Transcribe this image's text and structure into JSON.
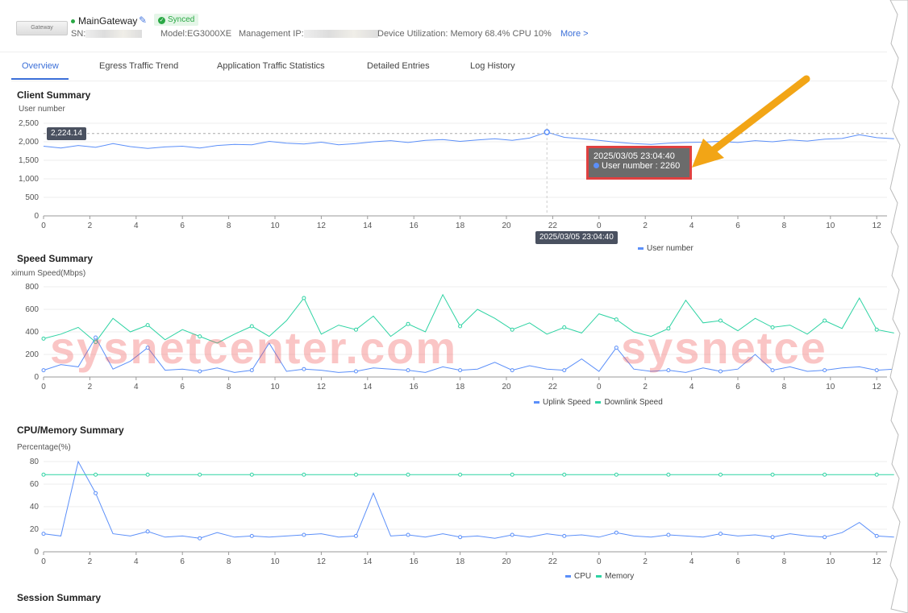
{
  "header": {
    "device_image_label": "Gateway",
    "name": "MainGateway",
    "status": "Synced",
    "sn_label": "SN:",
    "model": "Model:EG3000XE",
    "mgmt_ip_label": "Management IP:",
    "utilization": "Device Utilization: Memory 68.4% CPU 10%",
    "more": "More >"
  },
  "tabs": [
    "Overview",
    "Egress Traffic Trend",
    "Application Traffic Statistics",
    "Detailed Entries",
    "Log History"
  ],
  "watermark": "sysnetcenter.com",
  "watermark2": "sysnetce",
  "colors": {
    "accent": "#3b6fd8",
    "uplink": "#5b8ff9",
    "downlink": "#2ed3a3",
    "cpu": "#5b8ff9",
    "memory": "#2ed3a3"
  },
  "chart_data": [
    {
      "type": "line",
      "title": "Client Summary",
      "ylabel": "User number",
      "ylim": [
        0,
        2500
      ],
      "yticks": [
        0,
        500,
        1000,
        1500,
        2000,
        2500
      ],
      "xticks": [
        "0",
        "2",
        "4",
        "6",
        "8",
        "10",
        "12",
        "14",
        "16",
        "18",
        "20",
        "22",
        "0",
        "2",
        "4",
        "6",
        "8",
        "10",
        "12"
      ],
      "xstep_hours": 0.75,
      "series": [
        {
          "name": "User number",
          "values": [
            1880,
            1830,
            1900,
            1850,
            1950,
            1870,
            1820,
            1860,
            1880,
            1830,
            1900,
            1930,
            1920,
            2010,
            1960,
            1940,
            1990,
            1920,
            1950,
            2000,
            2030,
            1980,
            2040,
            2060,
            2010,
            2050,
            2080,
            2040,
            2100,
            2260,
            2120,
            2080,
            2040,
            1990,
            1950,
            1930,
            1960,
            1980,
            1990,
            2010,
            1980,
            2030,
            2000,
            2050,
            2020,
            2070,
            2090,
            2190,
            2110,
            2080
          ]
        }
      ],
      "tooltip": {
        "title": "2025/03/05 23:04:40",
        "label": "User number : 2260"
      },
      "crosshair_y": "2,224.14",
      "crosshair_x": "2025/03/05 23:04:40"
    },
    {
      "type": "line",
      "title": "Speed Summary",
      "ylabel": "ximum Speed(Mbps)",
      "ylim": [
        0,
        800
      ],
      "yticks": [
        0,
        200,
        400,
        600,
        800
      ],
      "series": [
        {
          "name": "Uplink Speed",
          "values": [
            60,
            110,
            90,
            350,
            70,
            140,
            260,
            60,
            70,
            50,
            80,
            40,
            60,
            300,
            50,
            70,
            60,
            40,
            50,
            80,
            70,
            60,
            40,
            90,
            60,
            70,
            130,
            60,
            100,
            70,
            60,
            160,
            50,
            260,
            70,
            50,
            60,
            40,
            80,
            50,
            70,
            200,
            60,
            90,
            50,
            60,
            80,
            90,
            60,
            70
          ]
        },
        {
          "name": "Downlink Speed",
          "values": [
            340,
            380,
            440,
            310,
            520,
            400,
            460,
            330,
            420,
            360,
            300,
            380,
            450,
            360,
            500,
            700,
            380,
            460,
            420,
            540,
            360,
            470,
            400,
            730,
            450,
            600,
            520,
            420,
            480,
            380,
            440,
            390,
            560,
            510,
            400,
            360,
            430,
            680,
            480,
            500,
            410,
            520,
            440,
            460,
            380,
            500,
            430,
            700,
            420,
            390
          ]
        }
      ]
    },
    {
      "type": "line",
      "title": "CPU/Memory Summary",
      "ylabel": "Percentage(%)",
      "ylim": [
        0,
        80
      ],
      "yticks": [
        0,
        20,
        40,
        60,
        80
      ],
      "series": [
        {
          "name": "CPU",
          "values": [
            16,
            14,
            80,
            52,
            16,
            14,
            18,
            13,
            14,
            12,
            17,
            13,
            14,
            13,
            14,
            15,
            16,
            13,
            14,
            52,
            14,
            15,
            13,
            16,
            13,
            14,
            12,
            15,
            13,
            16,
            14,
            15,
            13,
            17,
            14,
            13,
            15,
            14,
            13,
            16,
            14,
            15,
            13,
            16,
            14,
            13,
            17,
            26,
            14,
            13
          ]
        },
        {
          "name": "Memory",
          "values": [
            68.4,
            68.4,
            68.4,
            68.4,
            68.4,
            68.4,
            68.4,
            68.4,
            68.4,
            68.4,
            68.4,
            68.4,
            68.4,
            68.4,
            68.4,
            68.4,
            68.4,
            68.4,
            68.4,
            68.4,
            68.4,
            68.4,
            68.4,
            68.4,
            68.4,
            68.4,
            68.4,
            68.4,
            68.4,
            68.4,
            68.4,
            68.4,
            68.4,
            68.4,
            68.4,
            68.4,
            68.4,
            68.4,
            68.4,
            68.4,
            68.4,
            68.4,
            68.4,
            68.4,
            68.4,
            68.4,
            68.4,
            68.4,
            68.4,
            68.4
          ]
        }
      ]
    },
    {
      "type": "line",
      "title": "Session Summary"
    }
  ]
}
